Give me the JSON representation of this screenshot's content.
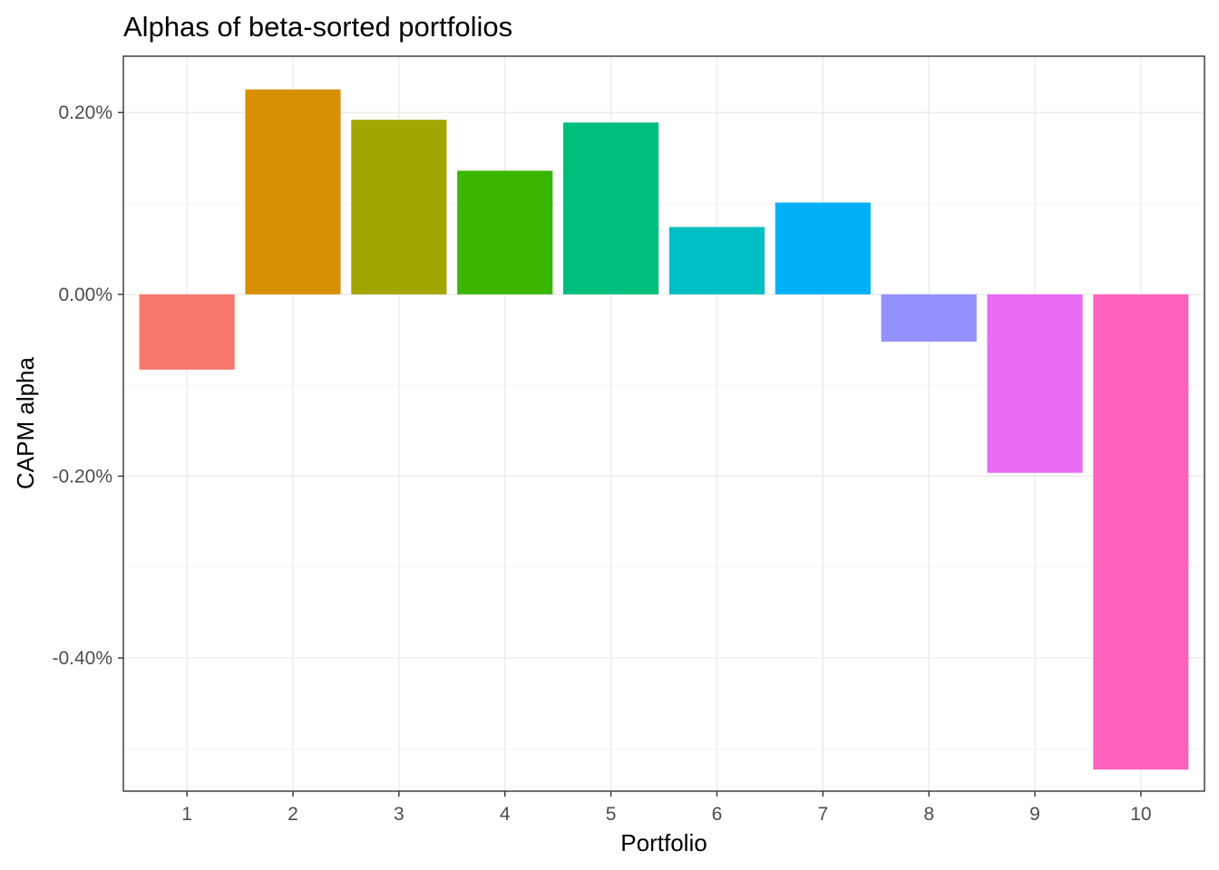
{
  "chart_data": {
    "type": "bar",
    "title": "Alphas of beta-sorted portfolios",
    "xlabel": "Portfolio",
    "ylabel": "CAPM alpha",
    "categories": [
      "1",
      "2",
      "3",
      "4",
      "5",
      "6",
      "7",
      "8",
      "9",
      "10"
    ],
    "values": [
      -0.0828,
      0.2255,
      0.192,
      0.136,
      0.189,
      0.0741,
      0.101,
      -0.052,
      -0.1963,
      -0.5227
    ],
    "colors": [
      "#F8766D",
      "#D89000",
      "#A3A500",
      "#39B600",
      "#00BF7D",
      "#00BFC4",
      "#00B0F6",
      "#9590FF",
      "#E76BF3",
      "#FF62BC"
    ],
    "ylim": [
      -0.5465,
      0.262
    ],
    "yticks": [
      -0.4,
      -0.2,
      0.0,
      0.2
    ],
    "yticklabels": [
      "-0.40%",
      "-0.20%",
      "0.00%",
      "0.20%"
    ],
    "grid": true,
    "legend": "none"
  }
}
